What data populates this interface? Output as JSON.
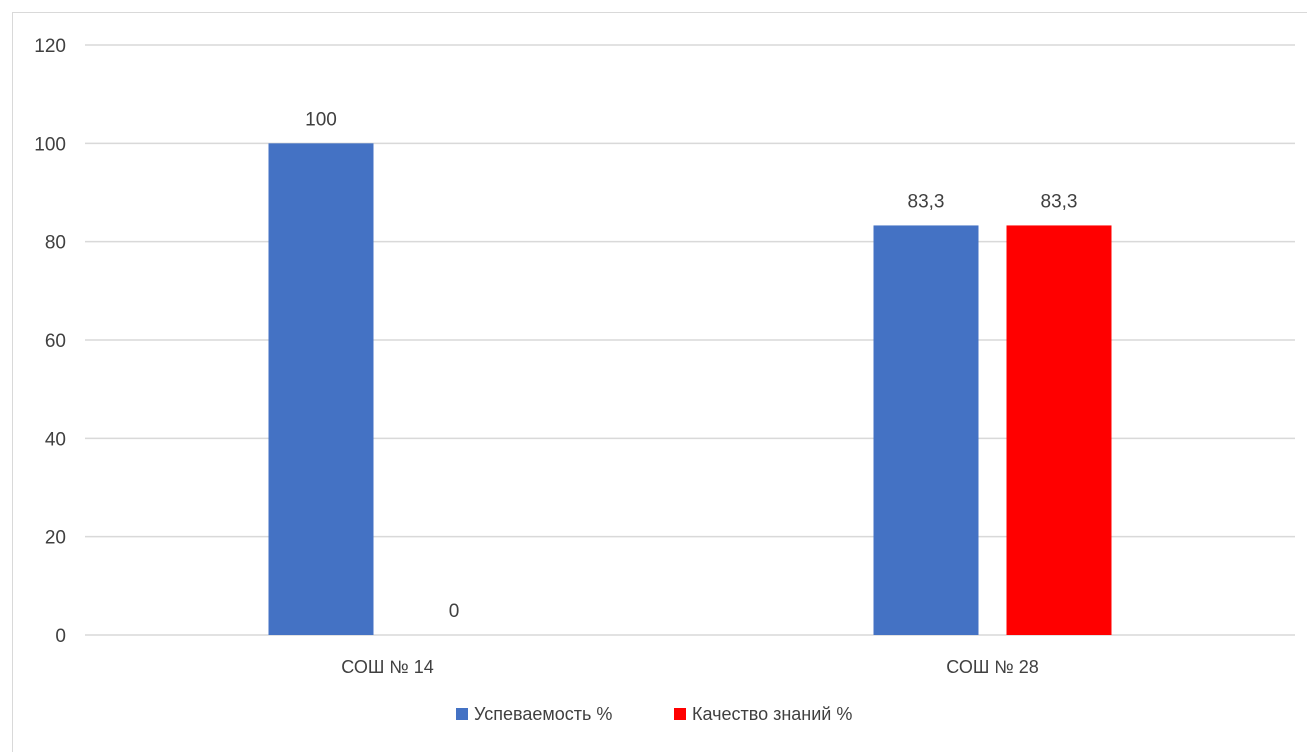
{
  "chart_data": {
    "type": "bar",
    "title": "",
    "xlabel": "",
    "ylabel": "",
    "categories": [
      "СОШ № 14",
      "СОШ № 28"
    ],
    "series": [
      {
        "name": "Успеваемость %",
        "values": [
          100,
          83.3
        ],
        "labels": [
          "100",
          "83,3"
        ],
        "color": "#4472C4"
      },
      {
        "name": "Качество знаний %",
        "values": [
          0,
          83.3
        ],
        "labels": [
          "0",
          "83,3"
        ],
        "color": "#FF0000"
      }
    ],
    "ylim": [
      0,
      120
    ],
    "yticks": [
      "0",
      "20",
      "40",
      "60",
      "80",
      "100",
      "120"
    ],
    "grid": true,
    "legend_position": "bottom"
  },
  "colors": {
    "gridline": "#d9d9d9",
    "axis_text": "#404040"
  }
}
